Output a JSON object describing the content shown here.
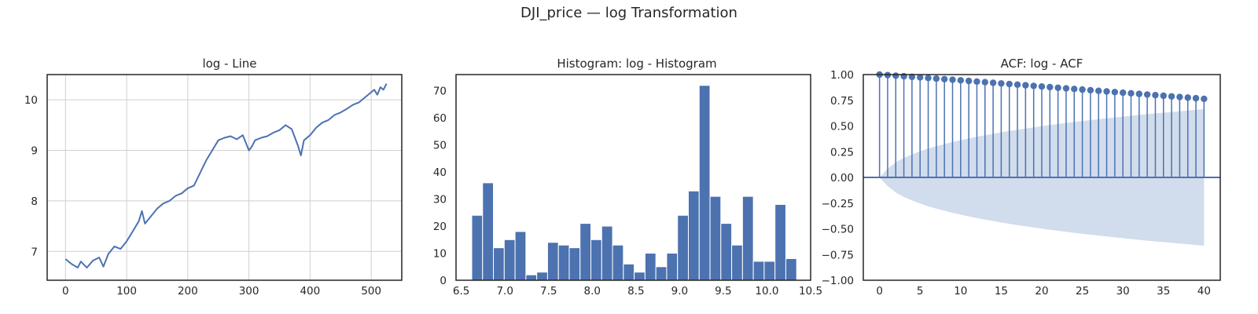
{
  "figure": {
    "suptitle": "DJI_price — log Transformation"
  },
  "colors": {
    "line": "#4c72b0",
    "band": "#b8c9e2",
    "grid": "#cfcfcf",
    "axis": "#262626"
  },
  "chart_data": [
    {
      "type": "line",
      "title": "log - Line",
      "xlabel": "",
      "ylabel": "",
      "xlim": [
        -30,
        550
      ],
      "ylim": [
        6.43,
        10.5
      ],
      "xticks": [
        0,
        100,
        200,
        300,
        400,
        500
      ],
      "yticks": [
        7,
        8,
        9,
        10
      ],
      "grid": true,
      "series": [
        {
          "x": [
            0,
            10,
            20,
            25,
            35,
            45,
            55,
            62,
            70,
            80,
            90,
            100,
            110,
            120,
            125,
            130,
            140,
            150,
            160,
            170,
            180,
            190,
            200,
            210,
            220,
            230,
            240,
            250,
            260,
            270,
            280,
            290,
            300,
            305,
            310,
            320,
            330,
            340,
            350,
            360,
            370,
            380,
            385,
            390,
            400,
            410,
            420,
            430,
            440,
            450,
            460,
            470,
            480,
            490,
            500,
            505,
            510,
            515,
            520,
            525
          ],
          "y": [
            6.85,
            6.75,
            6.68,
            6.8,
            6.68,
            6.82,
            6.88,
            6.7,
            6.95,
            7.1,
            7.05,
            7.2,
            7.4,
            7.6,
            7.8,
            7.55,
            7.7,
            7.85,
            7.95,
            8.0,
            8.1,
            8.15,
            8.25,
            8.3,
            8.55,
            8.8,
            9.0,
            9.2,
            9.25,
            9.28,
            9.22,
            9.3,
            9.0,
            9.08,
            9.2,
            9.25,
            9.28,
            9.35,
            9.4,
            9.5,
            9.42,
            9.1,
            8.9,
            9.2,
            9.3,
            9.45,
            9.55,
            9.6,
            9.7,
            9.75,
            9.82,
            9.9,
            9.95,
            10.05,
            10.15,
            10.2,
            10.1,
            10.25,
            10.2,
            10.32
          ]
        }
      ]
    },
    {
      "type": "bar",
      "title": "Histogram: log - Histogram",
      "xlabel": "",
      "ylabel": "",
      "xlim": [
        6.44,
        10.5
      ],
      "ylim": [
        0,
        76
      ],
      "xticks": [
        "6.5",
        "7.0",
        "7.5",
        "8.0",
        "8.5",
        "9.0",
        "9.5",
        "10.0",
        "10.5"
      ],
      "yticks": [
        0,
        10,
        20,
        30,
        40,
        50,
        60,
        70
      ],
      "bin_edges": [
        6.62,
        6.744,
        6.868,
        6.992,
        7.116,
        7.24,
        7.364,
        7.488,
        7.612,
        7.736,
        7.86,
        7.984,
        8.108,
        8.232,
        8.356,
        8.48,
        8.604,
        8.728,
        8.852,
        8.976,
        9.1,
        9.224,
        9.348,
        9.472,
        9.596,
        9.72,
        9.844,
        9.968,
        10.092,
        10.216,
        10.34
      ],
      "values": [
        24,
        36,
        12,
        15,
        18,
        2,
        3,
        14,
        13,
        12,
        21,
        15,
        20,
        13,
        6,
        3,
        10,
        5,
        10,
        24,
        33,
        72,
        31,
        21,
        13,
        31,
        7,
        7,
        28,
        8
      ]
    },
    {
      "type": "scatter",
      "title": "ACF: log - ACF",
      "xlabel": "",
      "ylabel": "",
      "xlim": [
        -2,
        42
      ],
      "ylim": [
        -1,
        1
      ],
      "xticks": [
        0,
        5,
        10,
        15,
        20,
        25,
        30,
        35,
        40
      ],
      "yticks": [
        "−1.00",
        "−0.75",
        "−0.50",
        "−0.25",
        "0.00",
        "0.25",
        "0.50",
        "0.75",
        "1.00"
      ],
      "lags": [
        0,
        1,
        2,
        3,
        4,
        5,
        6,
        7,
        8,
        9,
        10,
        11,
        12,
        13,
        14,
        15,
        16,
        17,
        18,
        19,
        20,
        21,
        22,
        23,
        24,
        25,
        26,
        27,
        28,
        29,
        30,
        31,
        32,
        33,
        34,
        35,
        36,
        37,
        38,
        39,
        40
      ],
      "acf": [
        1.0,
        0.995,
        0.989,
        0.984,
        0.978,
        0.973,
        0.967,
        0.961,
        0.956,
        0.95,
        0.944,
        0.938,
        0.932,
        0.926,
        0.92,
        0.914,
        0.908,
        0.902,
        0.896,
        0.89,
        0.884,
        0.878,
        0.872,
        0.866,
        0.86,
        0.854,
        0.848,
        0.842,
        0.836,
        0.83,
        0.824,
        0.818,
        0.812,
        0.806,
        0.8,
        0.794,
        0.788,
        0.782,
        0.776,
        0.77,
        0.764
      ],
      "conf_upper": [
        0.0,
        0.085,
        0.147,
        0.19,
        0.224,
        0.254,
        0.28,
        0.303,
        0.324,
        0.344,
        0.362,
        0.379,
        0.395,
        0.41,
        0.424,
        0.438,
        0.451,
        0.463,
        0.475,
        0.487,
        0.498,
        0.509,
        0.519,
        0.529,
        0.539,
        0.548,
        0.557,
        0.566,
        0.575,
        0.583,
        0.591,
        0.599,
        0.607,
        0.615,
        0.622,
        0.629,
        0.636,
        0.643,
        0.65,
        0.657,
        0.663
      ]
    }
  ]
}
